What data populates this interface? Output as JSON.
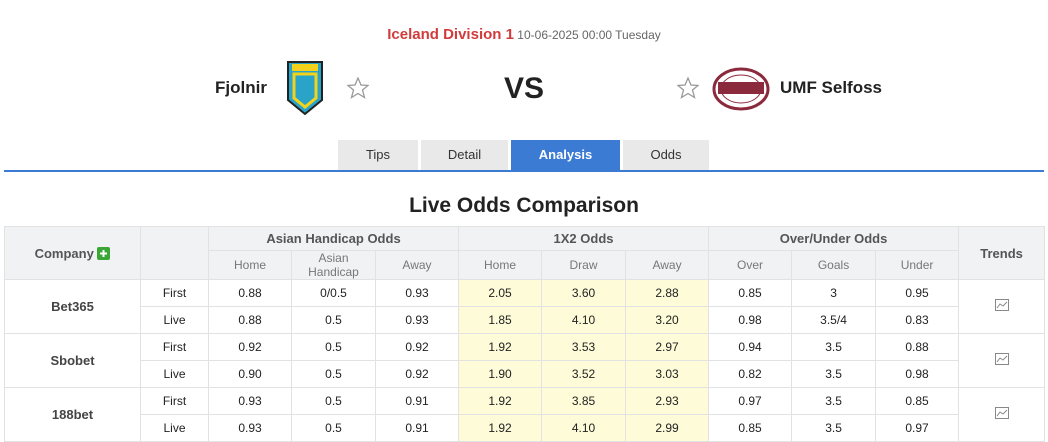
{
  "header": {
    "league": "Iceland Division 1",
    "datetime": "10-06-2025 00:00 Tuesday",
    "home": "Fjolnir",
    "vs": "VS",
    "away": "UMF Selfoss"
  },
  "tabs": [
    "Tips",
    "Detail",
    "Analysis",
    "Odds"
  ],
  "table": {
    "title": "Live Odds Comparison",
    "company_header": "Company",
    "groups": [
      "Asian Handicap Odds",
      "1X2 Odds",
      "Over/Under Odds"
    ],
    "trends_header": "Trends",
    "subheaders": [
      "Home",
      "Asian Handicap",
      "Away",
      "Home",
      "Draw",
      "Away",
      "Over",
      "Goals",
      "Under"
    ],
    "rows": [
      {
        "company": "Bet365",
        "lines": [
          {
            "label": "First",
            "odds": [
              "0.88",
              "0/0.5",
              "0.93",
              "2.05",
              "3.60",
              "2.88",
              "0.85",
              "3",
              "0.95"
            ]
          },
          {
            "label": "Live",
            "odds": [
              "0.88",
              "0.5",
              "0.93",
              "1.85",
              "4.10",
              "3.20",
              "0.98",
              "3.5/4",
              "0.83"
            ]
          }
        ]
      },
      {
        "company": "Sbobet",
        "lines": [
          {
            "label": "First",
            "odds": [
              "0.92",
              "0.5",
              "0.92",
              "1.92",
              "3.53",
              "2.97",
              "0.94",
              "3.5",
              "0.88"
            ]
          },
          {
            "label": "Live",
            "odds": [
              "0.90",
              "0.5",
              "0.92",
              "1.90",
              "3.52",
              "3.03",
              "0.82",
              "3.5",
              "0.98"
            ]
          }
        ]
      },
      {
        "company": "188bet",
        "lines": [
          {
            "label": "First",
            "odds": [
              "0.93",
              "0.5",
              "0.91",
              "1.92",
              "3.85",
              "2.93",
              "0.97",
              "3.5",
              "0.85"
            ]
          },
          {
            "label": "Live",
            "odds": [
              "0.93",
              "0.5",
              "0.91",
              "1.92",
              "4.10",
              "2.99",
              "0.85",
              "3.5",
              "0.97"
            ]
          }
        ]
      }
    ]
  }
}
